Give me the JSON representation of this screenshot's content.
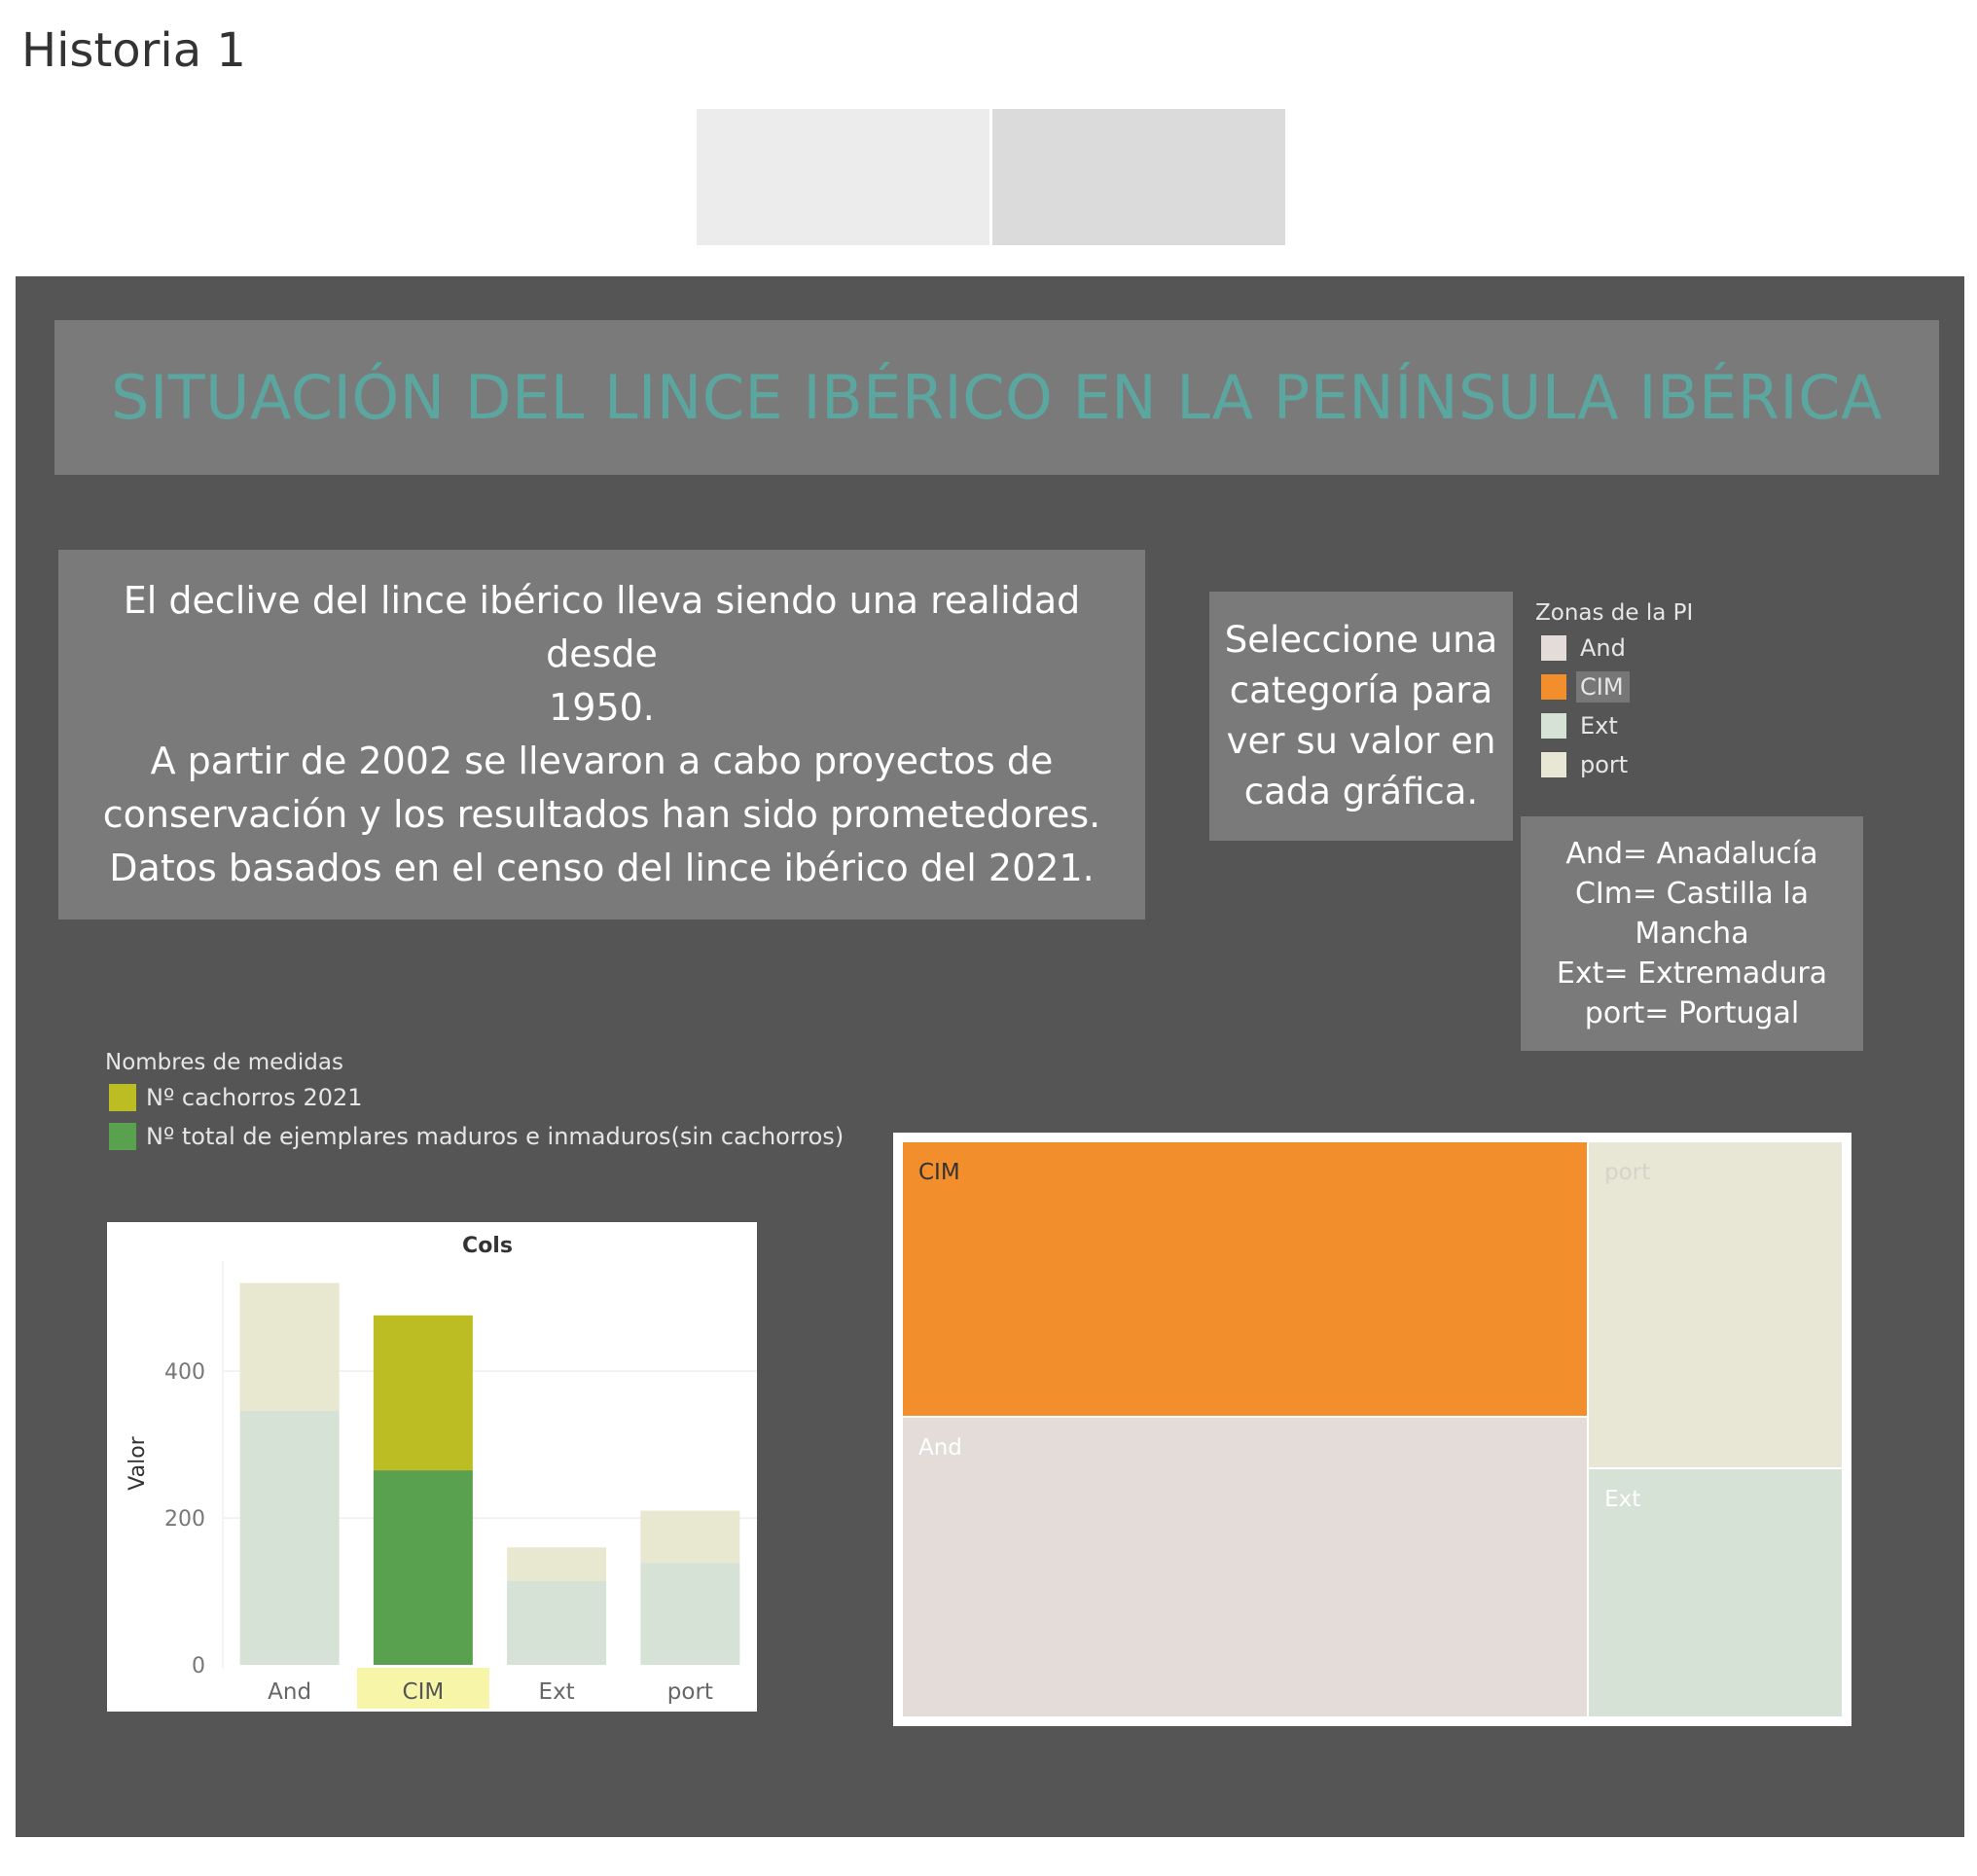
{
  "story": {
    "title": "Historia 1"
  },
  "dashboard": {
    "banner_title": "SITUACIÓN DEL LINCE IBÉRICO EN LA PENÍNSULA IBÉRICA",
    "intro_lines": [
      "El declive del lince ibérico lleva siendo una realidad desde",
      "1950.",
      "A partir de 2002 se llevaron a cabo proyectos de",
      "conservación y los resultados han sido prometedores.",
      "Datos basados en el censo del lince ibérico del 2021."
    ],
    "select_lines": [
      "Seleccione una",
      "categoría para",
      "ver su valor en",
      "cada gráfica."
    ],
    "abbreviations": [
      "And= Anadalucía",
      "CIm= Castilla la Mancha",
      "Ext= Extremadura",
      "port= Portugal"
    ]
  },
  "zone_legend": {
    "title": "Zonas de la PI",
    "items": [
      {
        "label": "And",
        "color": "#e3dcd8"
      },
      {
        "label": "CIM",
        "color": "#f28e2b",
        "selected": true
      },
      {
        "label": "Ext",
        "color": "#d6e2d5"
      },
      {
        "label": "port",
        "color": "#e8e7d5"
      }
    ]
  },
  "measure_legend": {
    "title": "Nombres de medidas",
    "items": [
      {
        "label": "Nº cachorros 2021",
        "color": "#bcbd22"
      },
      {
        "label": "Nº total de ejemplares maduros e inmaduros(sin cachorros)",
        "color": "#59a14f"
      }
    ]
  },
  "chart_data": [
    {
      "type": "bar",
      "title": "Cols",
      "xlabel": "",
      "ylabel": "Valor",
      "categories": [
        "And",
        "CIM",
        "Ext",
        "port"
      ],
      "selected_category": "CIM",
      "stacked": true,
      "ylim": [
        0,
        550
      ],
      "yticks": [
        0,
        200,
        400
      ],
      "grid": true,
      "series": [
        {
          "name": "Nº total de ejemplares maduros e inmaduros(sin cachorros)",
          "values": [
            346,
            265,
            114,
            139
          ],
          "color": "#59a14f",
          "muted_color": "#d6e2d5"
        },
        {
          "name": "Nº cachorros 2021",
          "values": [
            174,
            211,
            46,
            71
          ],
          "color": "#bcbd22",
          "muted_color": "#e8e7d0"
        }
      ]
    },
    {
      "type": "treemap",
      "categories": [
        "CIM",
        "port",
        "And",
        "Ext"
      ],
      "selected_category": "CIM",
      "values": [
        476,
        210,
        520,
        160
      ],
      "colors": {
        "And": "#e3dcd8",
        "CIM": "#f28e2b",
        "Ext": "#d6e2d5",
        "port": "#e8e7d5"
      }
    }
  ]
}
